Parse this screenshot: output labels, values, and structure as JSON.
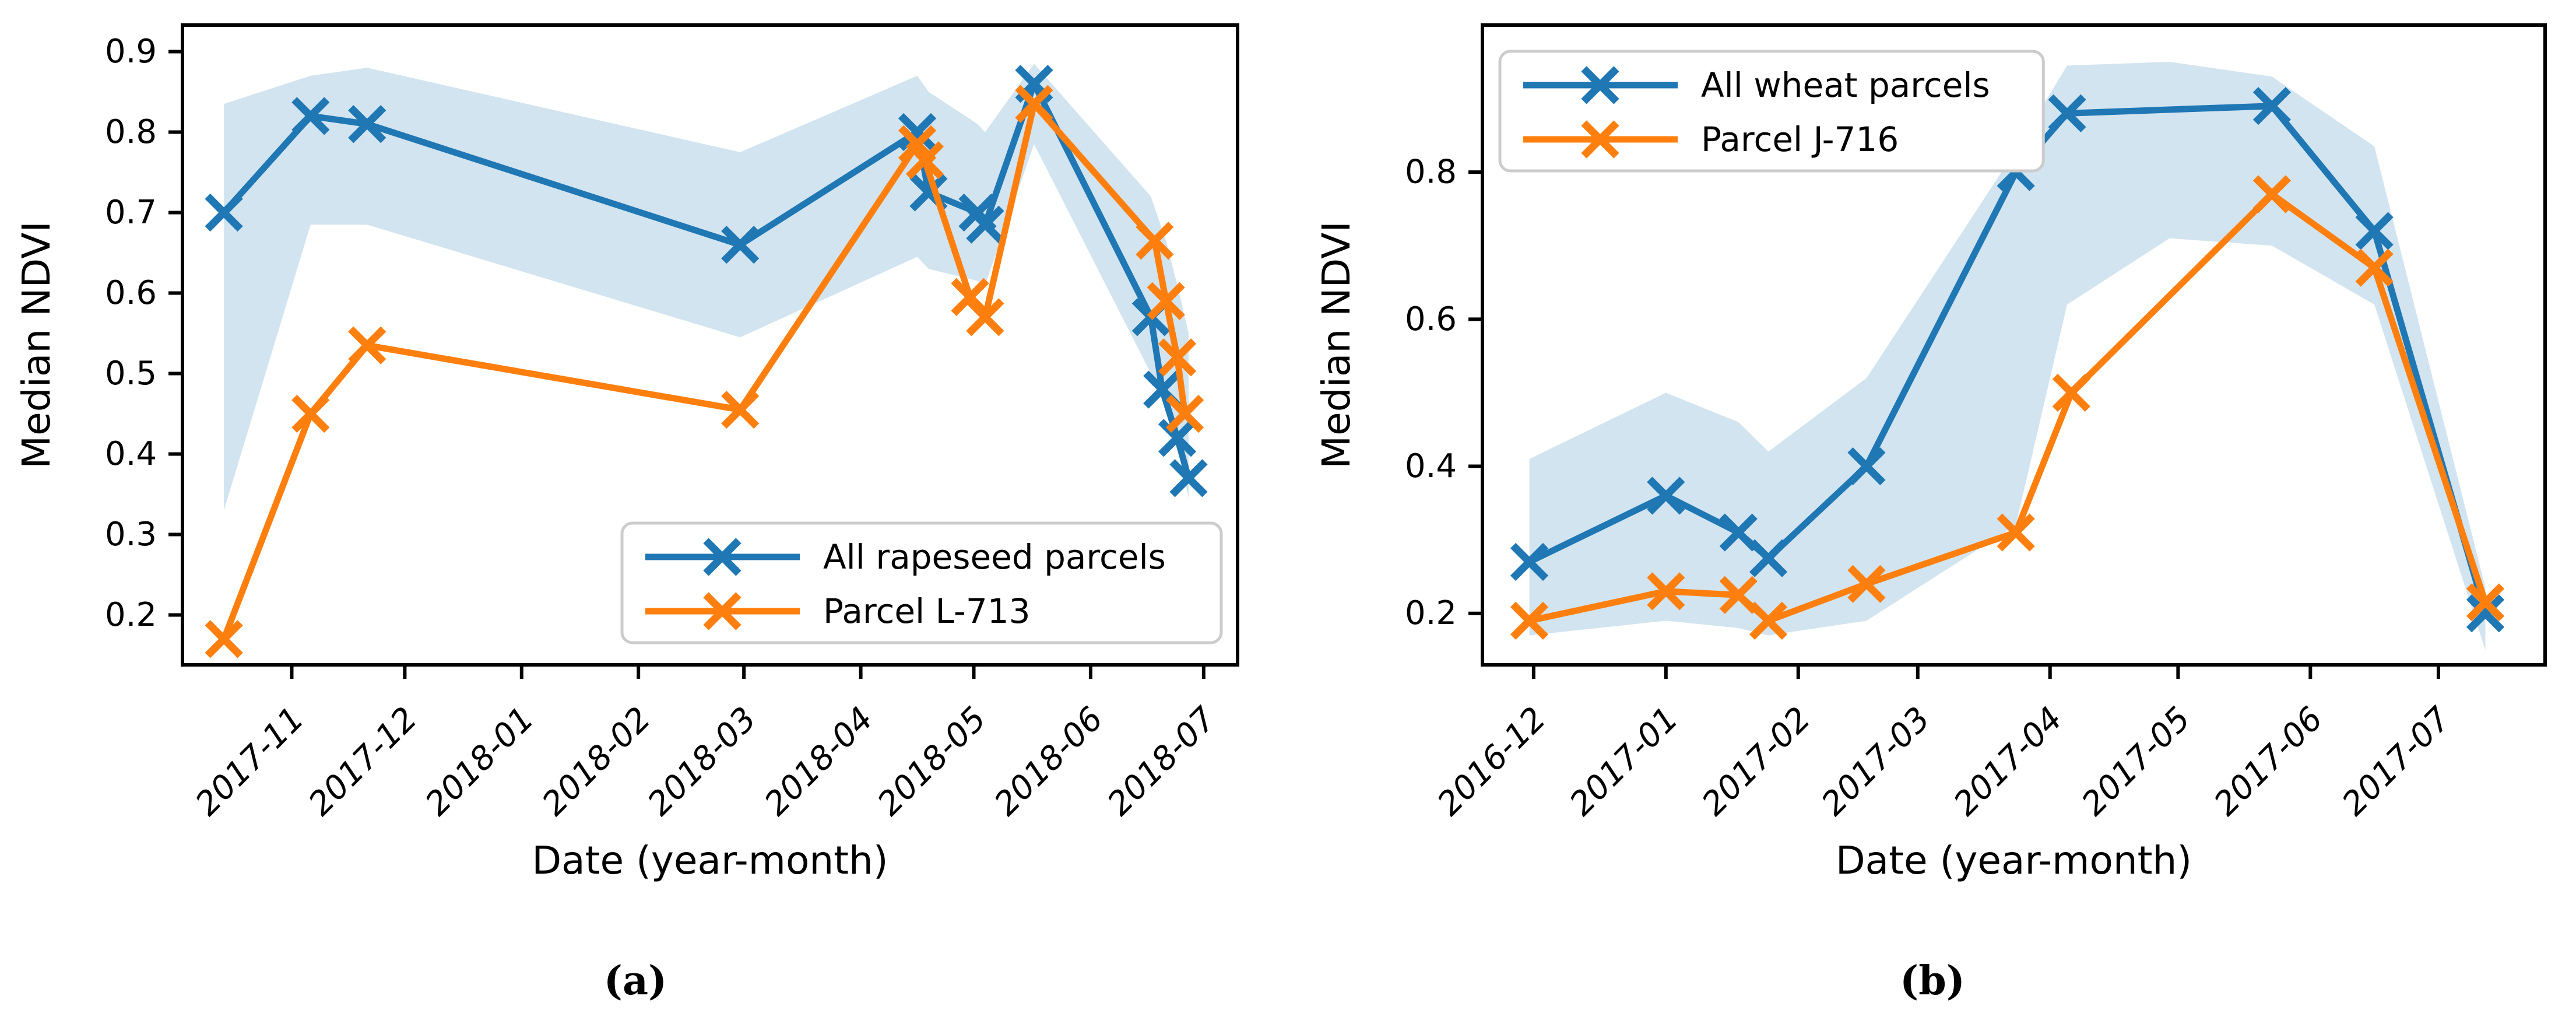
{
  "captions": {
    "a": "(a)",
    "b": "(b)"
  },
  "colors": {
    "series_blue": "#1f77b4",
    "series_orange": "#ff7f0e",
    "band_fill": "rgba(31,119,180,0.2)",
    "legend_border": "#cccccc",
    "axis": "#000000"
  },
  "chart_data": [
    {
      "id": "a",
      "type": "line",
      "title": "",
      "xlabel": "Date (year-month)",
      "ylabel": "Median NDVI",
      "x_unit_note": "x values are days since 2017-10-01",
      "xlim": [
        2,
        282
      ],
      "ylim": [
        0.138,
        0.933
      ],
      "grid": false,
      "yticks": [
        0.2,
        0.3,
        0.4,
        0.5,
        0.6,
        0.7,
        0.8,
        0.9
      ],
      "xticks": [
        {
          "x": 31,
          "label": "2017-11"
        },
        {
          "x": 61,
          "label": "2017-12"
        },
        {
          "x": 92,
          "label": "2018-01"
        },
        {
          "x": 123,
          "label": "2018-02"
        },
        {
          "x": 151,
          "label": "2018-03"
        },
        {
          "x": 182,
          "label": "2018-04"
        },
        {
          "x": 212,
          "label": "2018-05"
        },
        {
          "x": 243,
          "label": "2018-06"
        },
        {
          "x": 273,
          "label": "2018-07"
        }
      ],
      "legend": {
        "position": "lower-right"
      },
      "band": {
        "name": "ndvi-spread-all-rapeseed-parcels",
        "color": "rgba(31,119,180,0.2)",
        "points": [
          [
            13,
            0.33,
            0.835
          ],
          [
            36,
            0.685,
            0.87
          ],
          [
            51,
            0.685,
            0.88
          ],
          [
            150,
            0.545,
            0.775
          ],
          [
            197,
            0.645,
            0.87
          ],
          [
            200,
            0.63,
            0.85
          ],
          [
            213,
            0.615,
            0.81
          ],
          [
            215,
            0.61,
            0.8
          ],
          [
            228,
            0.785,
            0.885
          ],
          [
            259,
            0.5,
            0.72
          ],
          [
            263,
            0.46,
            0.665
          ],
          [
            266,
            0.41,
            0.61
          ],
          [
            269,
            0.345,
            0.55
          ]
        ]
      },
      "series": [
        {
          "name": "All rapeseed parcels",
          "color": "#1f77b4",
          "marker": "x",
          "points": [
            [
              13,
              0.7
            ],
            [
              36,
              0.82
            ],
            [
              51,
              0.81
            ],
            [
              150,
              0.66
            ],
            [
              197,
              0.8
            ],
            [
              200,
              0.725
            ],
            [
              213,
              0.7
            ],
            [
              215,
              0.685
            ],
            [
              228,
              0.86
            ],
            [
              259,
              0.57
            ],
            [
              262,
              0.48
            ],
            [
              266,
              0.42
            ],
            [
              269,
              0.37
            ]
          ]
        },
        {
          "name": "Parcel L-713",
          "color": "#ff7f0e",
          "marker": "x",
          "points": [
            [
              13,
              0.17
            ],
            [
              36,
              0.45
            ],
            [
              51,
              0.535
            ],
            [
              150,
              0.455
            ],
            [
              197,
              0.785
            ],
            [
              199,
              0.765
            ],
            [
              211,
              0.595
            ],
            [
              215,
              0.57
            ],
            [
              228,
              0.835
            ],
            [
              260,
              0.665
            ],
            [
              263,
              0.59
            ],
            [
              266,
              0.52
            ],
            [
              268,
              0.45
            ]
          ]
        }
      ]
    },
    {
      "id": "b",
      "type": "line",
      "title": "",
      "xlabel": "Date (year-month)",
      "ylabel": "Median NDVI",
      "x_unit_note": "x values are days since 2016-12-01",
      "xlim": [
        -12,
        237
      ],
      "ylim": [
        0.13,
        1.0
      ],
      "grid": false,
      "yticks": [
        0.2,
        0.4,
        0.6,
        0.8
      ],
      "xticks": [
        {
          "x": 0,
          "label": "2016-12"
        },
        {
          "x": 31,
          "label": "2017-01"
        },
        {
          "x": 62,
          "label": "2017-02"
        },
        {
          "x": 90,
          "label": "2017-03"
        },
        {
          "x": 121,
          "label": "2017-04"
        },
        {
          "x": 151,
          "label": "2017-05"
        },
        {
          "x": 182,
          "label": "2017-06"
        },
        {
          "x": 212,
          "label": "2017-07"
        }
      ],
      "legend": {
        "position": "upper-left"
      },
      "band": {
        "name": "ndvi-spread-all-wheat-parcels",
        "color": "rgba(31,119,180,0.2)",
        "points": [
          [
            -1,
            0.17,
            0.41
          ],
          [
            31,
            0.19,
            0.5
          ],
          [
            48,
            0.18,
            0.46
          ],
          [
            55,
            0.17,
            0.42
          ],
          [
            78,
            0.19,
            0.52
          ],
          [
            113,
            0.32,
            0.83
          ],
          [
            125,
            0.62,
            0.945
          ],
          [
            149,
            0.71,
            0.95
          ],
          [
            173,
            0.7,
            0.93
          ],
          [
            197,
            0.62,
            0.835
          ],
          [
            223,
            0.15,
            0.235
          ]
        ]
      },
      "series": [
        {
          "name": "All wheat parcels",
          "color": "#1f77b4",
          "marker": "x",
          "points": [
            [
              -1,
              0.27
            ],
            [
              31,
              0.36
            ],
            [
              48,
              0.31
            ],
            [
              55,
              0.275
            ],
            [
              78,
              0.4
            ],
            [
              113,
              0.8
            ],
            [
              125,
              0.88
            ],
            [
              173,
              0.89
            ],
            [
              197,
              0.72
            ],
            [
              223,
              0.2
            ]
          ]
        },
        {
          "name": "Parcel J-716",
          "color": "#ff7f0e",
          "marker": "x",
          "points": [
            [
              -1,
              0.19
            ],
            [
              31,
              0.23
            ],
            [
              48,
              0.225
            ],
            [
              55,
              0.19
            ],
            [
              78,
              0.24
            ],
            [
              113,
              0.31
            ],
            [
              126,
              0.5
            ],
            [
              173,
              0.77
            ],
            [
              197,
              0.67
            ],
            [
              223,
              0.215
            ]
          ]
        }
      ]
    }
  ]
}
